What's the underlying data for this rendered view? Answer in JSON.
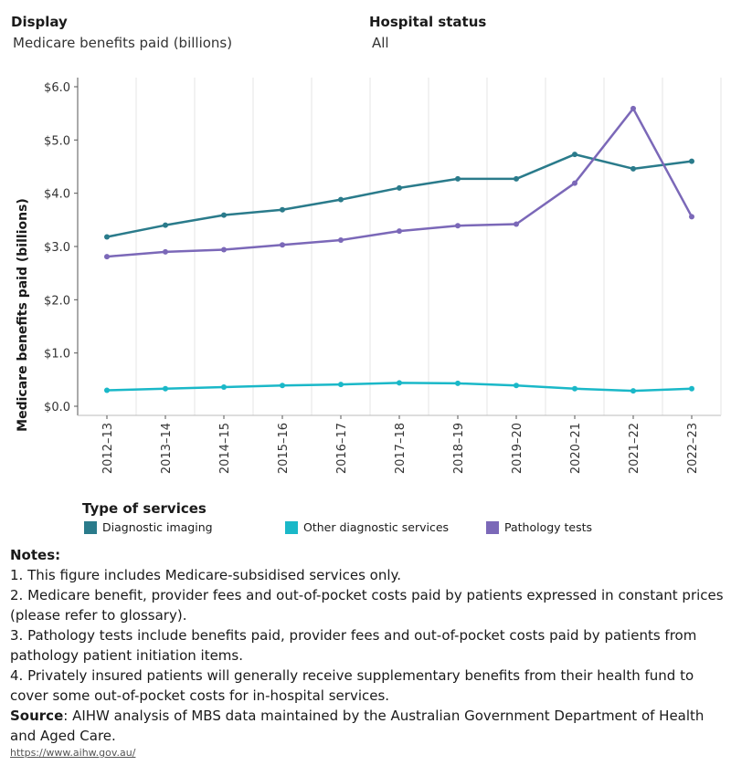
{
  "filters": {
    "display_label": "Display",
    "display_value": "Medicare benefits paid (billions)",
    "hospital_label": "Hospital status",
    "hospital_value": "All"
  },
  "chart_data": {
    "type": "line",
    "title": "",
    "xlabel": "",
    "ylabel": "Medicare benefits paid (billions)",
    "ylim": [
      0,
      6.0
    ],
    "yticks": [
      0,
      1,
      2,
      3,
      4,
      5,
      6
    ],
    "ytick_labels": [
      "$0.0",
      "$1.0",
      "$2.0",
      "$3.0",
      "$4.0",
      "$5.0",
      "$6.0"
    ],
    "categories": [
      "2012–13",
      "2013–14",
      "2014–15",
      "2015–16",
      "2016–17",
      "2017–18",
      "2018–19",
      "2019–20",
      "2020–21",
      "2021–22",
      "2022–23"
    ],
    "series": [
      {
        "name": "Diagnostic imaging",
        "color": "#2a7b8b",
        "values": [
          3.18,
          3.4,
          3.59,
          3.69,
          3.88,
          4.1,
          4.27,
          4.27,
          4.73,
          4.46,
          4.6
        ]
      },
      {
        "name": "Other diagnostic services",
        "color": "#1ab8c8",
        "values": [
          0.3,
          0.33,
          0.36,
          0.39,
          0.41,
          0.44,
          0.43,
          0.39,
          0.33,
          0.29,
          0.33
        ]
      },
      {
        "name": "Pathology tests",
        "color": "#7b68b8",
        "values": [
          2.81,
          2.9,
          2.94,
          3.03,
          3.12,
          3.29,
          3.39,
          3.42,
          4.19,
          5.59,
          3.56
        ]
      }
    ]
  },
  "legend": {
    "title": "Type of services",
    "items": [
      "Diagnostic imaging",
      "Other diagnostic services",
      "Pathology tests"
    ]
  },
  "notes": {
    "title": "Notes:",
    "lines": [
      "1. This figure includes Medicare-subsidised services only.",
      "2. Medicare benefit, provider fees and out-of-pocket costs paid by patients expressed in constant prices (please refer to glossary).",
      "3. Pathology tests include benefits paid, provider fees and out-of-pocket costs paid by patients from pathology patient initiation items.",
      "4. Privately insured patients will generally receive supplementary benefits from their health fund to cover some out-of-pocket costs for in-hospital services."
    ],
    "source_label": "Source",
    "source_text": ": AIHW analysis of MBS data maintained by the Australian Government Department of Health and Aged Care."
  },
  "link": "https://www.aihw.gov.au/"
}
